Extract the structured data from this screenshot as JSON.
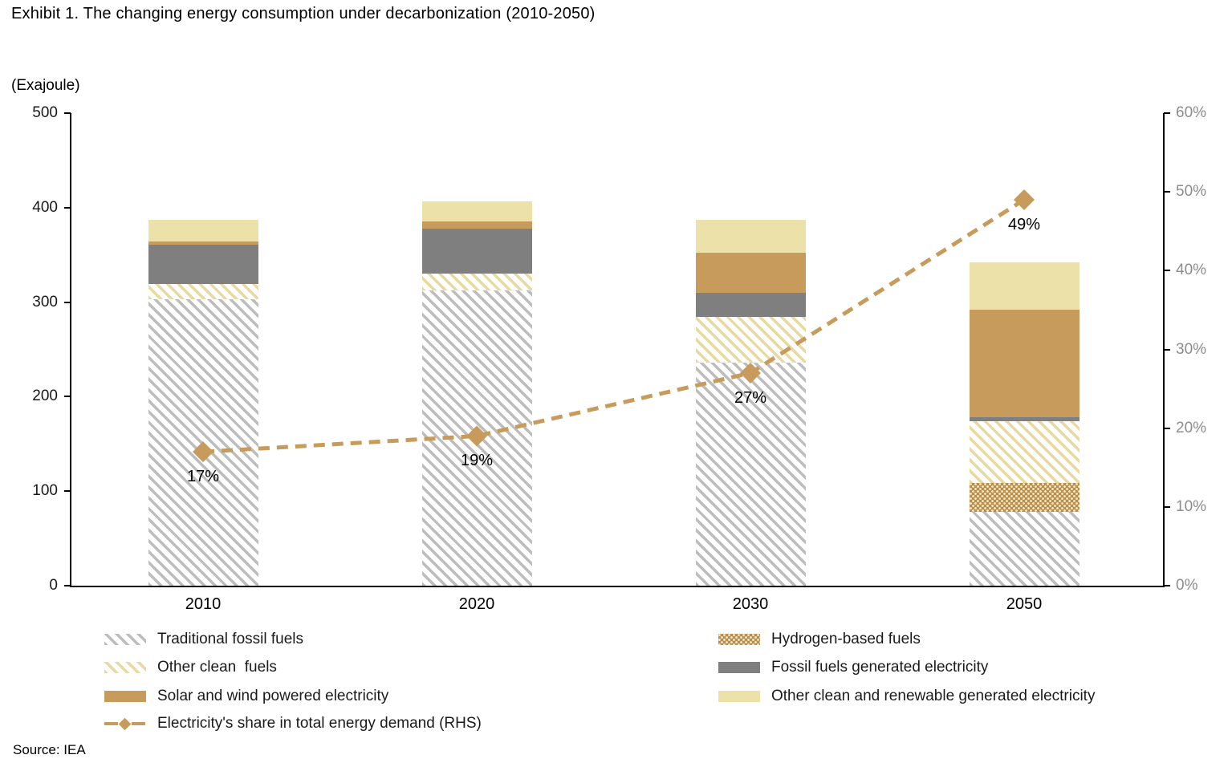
{
  "title": "Exhibit 1. The changing energy consumption under decarbonization (2010-2050)",
  "source": "Source: IEA",
  "colors": {
    "bar_gray_hatch": "#BDBDBD",
    "bar_yellow_hatch": "#E7D9A0",
    "bar_gray_solid": "#7F7F7F",
    "bar_tan_solid": "#C79B5C",
    "bar_cream_solid": "#EBE1A9",
    "hydrogen_base": "#B98E4F",
    "hydrogen_dot": "#F5ECCB",
    "line": "#C79B5C",
    "axis": "#000000",
    "right_axis_text": "#8C8C8C",
    "text": "#1A1A1A"
  },
  "chart_data": {
    "type": "bar",
    "subtype": "stacked-bar-with-line",
    "categories": [
      "2010",
      "2020",
      "2030",
      "2050"
    ],
    "unit": "Exajoule",
    "stack_order_bottom_to_top": [
      "traditional_fossil",
      "hydrogen",
      "other_clean_fuels",
      "fossil_electricity",
      "solar_wind",
      "other_clean_renewable"
    ],
    "series": [
      {
        "key": "traditional_fossil",
        "name": "Traditional fossil fuels",
        "fill": "hatch-gray",
        "values": [
          303,
          312,
          236,
          78
        ]
      },
      {
        "key": "hydrogen",
        "name": "Hydrogen-based fuels",
        "fill": "dots-brown",
        "values": [
          0,
          0,
          0,
          31
        ]
      },
      {
        "key": "other_clean_fuels",
        "name": "Other clean  fuels",
        "fill": "hatch-yellow",
        "values": [
          16,
          18,
          48,
          65
        ]
      },
      {
        "key": "fossil_electricity",
        "name": "Fossil fuels generated electricity",
        "fill": "solid-gray",
        "values": [
          42,
          48,
          26,
          4
        ]
      },
      {
        "key": "solar_wind",
        "name": "Solar and wind powered electricity",
        "fill": "solid-tan",
        "values": [
          3,
          7,
          42,
          114
        ]
      },
      {
        "key": "other_clean_renewable",
        "name": "Other clean and renewable generated electricity",
        "fill": "solid-cream",
        "values": [
          23,
          22,
          35,
          50
        ]
      }
    ],
    "bar_totals": [
      387,
      407,
      387,
      342
    ],
    "line_series": {
      "key": "electricity_share",
      "name": "Electricity's share in total energy demand (RHS)",
      "axis": "right",
      "values_pct": [
        17,
        19,
        27,
        49
      ],
      "point_labels": [
        "17%",
        "19%",
        "27%",
        "49%"
      ]
    },
    "left_axis": {
      "unit_label": "(Exajoule)",
      "min": 0,
      "max": 500,
      "tick_step": 100,
      "tick_labels": [
        "0",
        "100",
        "200",
        "300",
        "400",
        "500"
      ]
    },
    "right_axis": {
      "min": 0,
      "max": 60,
      "tick_step": 10,
      "tick_labels": [
        "0%",
        "10%",
        "20%",
        "30%",
        "40%",
        "50%",
        "60%"
      ]
    },
    "grid": false,
    "legend_position": "bottom-two-columns"
  },
  "legend": {
    "columns": [
      {
        "items": [
          {
            "swatch": "hatch-gray",
            "label": "Traditional fossil fuels"
          },
          {
            "swatch": "hatch-yellow",
            "label": "Other clean  fuels"
          },
          {
            "swatch": "solid-tan",
            "label": "Solar and wind powered electricity"
          },
          {
            "swatch": "line",
            "label": "Electricity's share in total energy demand (RHS)"
          }
        ]
      },
      {
        "items": [
          {
            "swatch": "dots-brown",
            "label": "Hydrogen-based fuels"
          },
          {
            "swatch": "solid-gray",
            "label": "Fossil fuels generated electricity"
          },
          {
            "swatch": "solid-cream",
            "label": "Other clean and renewable generated electricity"
          }
        ]
      }
    ]
  }
}
